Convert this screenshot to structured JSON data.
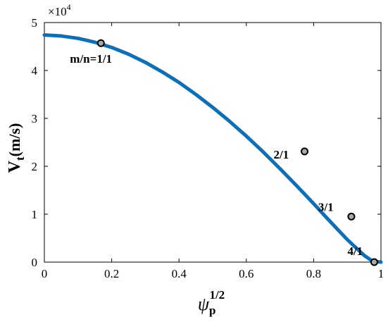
{
  "chart_data": {
    "type": "line",
    "ylabel": {
      "main": "V",
      "sub": "t",
      "rest": "(m/s)"
    },
    "xlabel": {
      "main": "ψ",
      "sub": "p",
      "sup": "1/2"
    },
    "exponent_label": {
      "base": "×10",
      "power": "4"
    },
    "xlim": [
      0,
      1
    ],
    "ylim": [
      0,
      5
    ],
    "y_scale_factor": 10000,
    "xticks": [
      0,
      0.2,
      0.4,
      0.6,
      0.8,
      1
    ],
    "xtick_labels": [
      "0",
      "0.2",
      "0.4",
      "0.6",
      "0.8",
      "1"
    ],
    "yticks": [
      0,
      1,
      2,
      3,
      4,
      5
    ],
    "ytick_labels": [
      "0",
      "1",
      "2",
      "3",
      "4",
      "5"
    ],
    "grid": false,
    "line_color": "#0e6fb9",
    "series": [
      {
        "x": [
          0,
          0.05,
          0.1,
          0.15,
          0.2,
          0.25,
          0.3,
          0.35,
          0.4,
          0.45,
          0.5,
          0.55,
          0.6,
          0.65,
          0.7,
          0.75,
          0.8,
          0.85,
          0.9,
          0.95,
          0.975,
          1.0
        ],
        "y": [
          4.74,
          4.72,
          4.67,
          4.59,
          4.48,
          4.34,
          4.17,
          3.97,
          3.75,
          3.5,
          3.23,
          2.94,
          2.63,
          2.3,
          1.95,
          1.59,
          1.22,
          0.84,
          0.47,
          0.14,
          0.02,
          0.0
        ]
      }
    ],
    "points": [
      {
        "x": 0.168,
        "y": 4.57,
        "label": "m/n=1/1"
      },
      {
        "x": 0.773,
        "y": 2.31,
        "label": "2/1"
      },
      {
        "x": 0.912,
        "y": 0.95,
        "label": "3/1"
      },
      {
        "x": 0.98,
        "y": 0.0,
        "label": "4/1"
      }
    ]
  }
}
